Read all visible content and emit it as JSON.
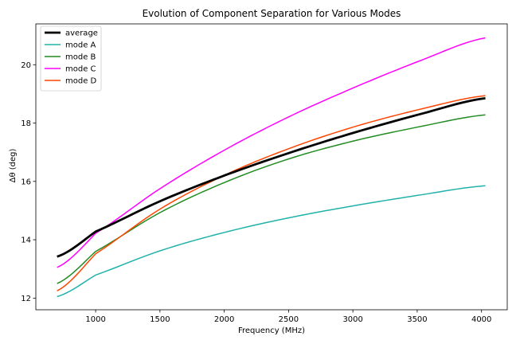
{
  "chart_data": {
    "type": "line",
    "title": "Evolution of Component Separation for Various Modes",
    "xlabel": "Frequency (MHz)",
    "ylabel": "Δθ (deg)",
    "xlim": [
      535,
      4200
    ],
    "ylim": [
      11.6,
      21.4
    ],
    "xticks": [
      1000,
      1500,
      2000,
      2500,
      3000,
      3500,
      4000
    ],
    "yticks": [
      12,
      14,
      16,
      18,
      20
    ],
    "grid": false,
    "legend_position": "top-left",
    "x": [
      700,
      1000,
      1500,
      2000,
      2500,
      3000,
      3500,
      4030
    ],
    "series": [
      {
        "name": "average",
        "color": "#000000",
        "linewidth": 2.8,
        "values": [
          13.42,
          14.28,
          15.32,
          16.2,
          16.97,
          17.66,
          18.28,
          18.85
        ]
      },
      {
        "name": "mode A",
        "color": "#20b2aa",
        "linewidth": 1.5,
        "values": [
          12.05,
          12.79,
          13.62,
          14.25,
          14.75,
          15.16,
          15.52,
          15.85
        ]
      },
      {
        "name": "mode B",
        "color": "#228b22",
        "linewidth": 1.5,
        "values": [
          12.5,
          13.6,
          14.93,
          15.96,
          16.77,
          17.38,
          17.86,
          18.28
        ]
      },
      {
        "name": "mode C",
        "color": "#ff00ff",
        "linewidth": 1.5,
        "values": [
          13.05,
          14.22,
          15.75,
          17.07,
          18.21,
          19.2,
          20.1,
          20.92
        ]
      },
      {
        "name": "mode D",
        "color": "#ff4500",
        "linewidth": 1.5,
        "values": [
          12.25,
          13.52,
          15.05,
          16.21,
          17.12,
          17.86,
          18.45,
          18.94
        ]
      }
    ]
  }
}
